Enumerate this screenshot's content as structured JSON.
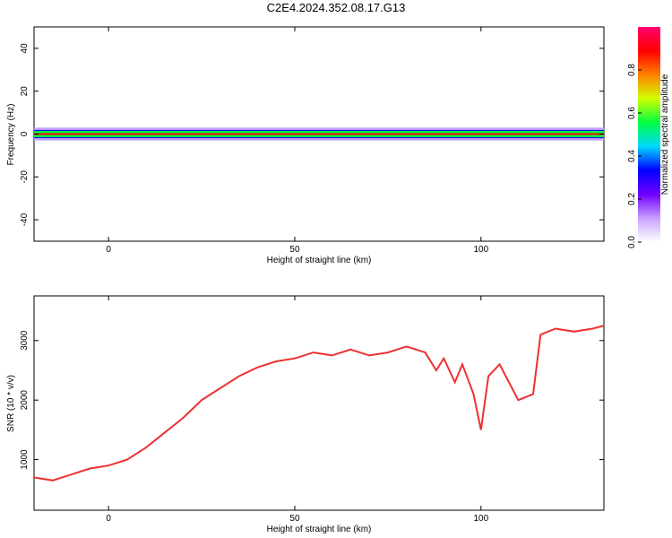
{
  "title": "C2E4.2024.352.08.17.G13",
  "chart_data": [
    {
      "type": "heatmap",
      "title": "",
      "xlabel": "Height of straight line (km)",
      "ylabel": "Frequency (Hz)",
      "xlim": [
        -20,
        133
      ],
      "ylim": [
        -50,
        50
      ],
      "xticks": [
        "0",
        "50",
        "100"
      ],
      "yticks": [
        "-40",
        "-20",
        "0",
        "20",
        "40"
      ],
      "colorbar": {
        "label": "Normalized spectral amplitude",
        "range": [
          0,
          1
        ],
        "ticks": [
          "0.0",
          "0.2",
          "0.4",
          "0.6",
          "0.8"
        ],
        "colors": [
          "#ffffff",
          "#c8a0ff",
          "#7000ff",
          "#0000ff",
          "#00d8ff",
          "#00ff40",
          "#d0ff00",
          "#ff8000",
          "#ff0000",
          "#ff0070"
        ]
      },
      "band": {
        "center_hz": 0,
        "core_halfwidth_hz": 1.5,
        "outer_halfwidth_hz": 3
      }
    },
    {
      "type": "line",
      "title": "",
      "xlabel": "Height of straight line (km)",
      "ylabel": "SNR (10 * v/v)",
      "xlim": [
        -20,
        133
      ],
      "ylim": [
        150,
        3750
      ],
      "xticks": [
        "0",
        "50",
        "100"
      ],
      "yticks": [
        "1000",
        "2000",
        "3000"
      ],
      "series": [
        {
          "color": "#ee3030",
          "x": [
            -20,
            -15,
            -10,
            -5,
            0,
            5,
            10,
            15,
            20,
            25,
            30,
            35,
            40,
            45,
            50,
            55,
            60,
            65,
            70,
            75,
            80,
            85,
            88,
            90,
            93,
            95,
            98,
            100,
            102,
            105,
            110,
            114,
            116,
            120,
            125,
            130,
            133
          ],
          "y": [
            700,
            650,
            750,
            850,
            900,
            1000,
            1200,
            1450,
            1700,
            2000,
            2200,
            2400,
            2550,
            2650,
            2700,
            2800,
            2750,
            2850,
            2750,
            2800,
            2900,
            2800,
            2500,
            2700,
            2300,
            2600,
            2100,
            1500,
            2400,
            2600,
            2000,
            2100,
            3100,
            3200,
            3150,
            3200,
            3250
          ]
        }
      ]
    }
  ]
}
